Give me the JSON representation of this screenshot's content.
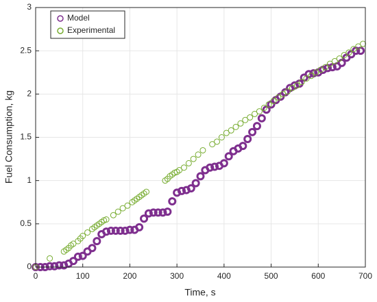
{
  "chart_data": {
    "type": "scatter",
    "xlabel": "Time, s",
    "ylabel": "Fuel Consumption, kg",
    "xlim": [
      0,
      700
    ],
    "xticks": [
      0,
      100,
      200,
      300,
      400,
      500,
      600,
      700
    ],
    "ylim": [
      0,
      3
    ],
    "yticks": [
      0,
      0.5,
      1,
      1.5,
      2,
      2.5,
      3
    ],
    "grid": true,
    "legend": "northwest",
    "series": [
      {
        "name": "Model",
        "color": "#7e2f8e",
        "filled": false,
        "x": [
          0,
          10,
          20,
          30,
          40,
          50,
          60,
          70,
          80,
          90,
          100,
          110,
          120,
          130,
          140,
          150,
          160,
          170,
          180,
          190,
          200,
          210,
          220,
          230,
          240,
          250,
          260,
          270,
          280,
          290,
          300,
          310,
          320,
          330,
          340,
          350,
          360,
          370,
          380,
          390,
          400,
          410,
          420,
          430,
          440,
          450,
          460,
          470,
          480,
          490,
          500,
          510,
          520,
          530,
          540,
          550,
          560,
          570,
          580,
          590,
          600,
          610,
          620,
          630,
          640,
          650,
          660,
          670,
          680,
          690
        ],
        "values": [
          0,
          0,
          0,
          0.01,
          0.01,
          0.02,
          0.02,
          0.04,
          0.07,
          0.12,
          0.13,
          0.18,
          0.22,
          0.3,
          0.38,
          0.41,
          0.42,
          0.42,
          0.42,
          0.42,
          0.43,
          0.43,
          0.46,
          0.56,
          0.62,
          0.63,
          0.63,
          0.63,
          0.64,
          0.76,
          0.86,
          0.88,
          0.89,
          0.91,
          0.97,
          1.05,
          1.12,
          1.15,
          1.16,
          1.17,
          1.2,
          1.28,
          1.34,
          1.37,
          1.4,
          1.48,
          1.56,
          1.63,
          1.72,
          1.82,
          1.88,
          1.93,
          1.97,
          2.02,
          2.07,
          2.1,
          2.12,
          2.19,
          2.23,
          2.24,
          2.25,
          2.28,
          2.3,
          2.31,
          2.32,
          2.36,
          2.42,
          2.46,
          2.5,
          2.5
        ]
      },
      {
        "name": "Experimental",
        "color": "#77ac30",
        "filled": false,
        "x": [
          0,
          30,
          60,
          65,
          70,
          75,
          80,
          90,
          95,
          100,
          110,
          120,
          125,
          130,
          135,
          140,
          145,
          150,
          165,
          175,
          185,
          195,
          205,
          210,
          215,
          220,
          225,
          230,
          235,
          275,
          280,
          285,
          290,
          295,
          300,
          305,
          315,
          325,
          335,
          345,
          355,
          375,
          385,
          395,
          405,
          415,
          425,
          435,
          445,
          455,
          465,
          475,
          485,
          495,
          505,
          515,
          525,
          535,
          545,
          555,
          565,
          575,
          585,
          595,
          605,
          615,
          625,
          635,
          645,
          655,
          665,
          675,
          685,
          695
        ],
        "values": [
          0,
          0.1,
          0.18,
          0.2,
          0.22,
          0.25,
          0.27,
          0.3,
          0.33,
          0.36,
          0.4,
          0.44,
          0.46,
          0.48,
          0.5,
          0.52,
          0.54,
          0.55,
          0.6,
          0.64,
          0.68,
          0.71,
          0.75,
          0.77,
          0.79,
          0.81,
          0.83,
          0.85,
          0.87,
          1.0,
          1.02,
          1.05,
          1.07,
          1.09,
          1.1,
          1.12,
          1.15,
          1.2,
          1.25,
          1.3,
          1.35,
          1.42,
          1.45,
          1.5,
          1.55,
          1.58,
          1.62,
          1.66,
          1.7,
          1.73,
          1.77,
          1.8,
          1.84,
          1.88,
          1.92,
          1.96,
          2.0,
          2.03,
          2.07,
          2.1,
          2.14,
          2.18,
          2.21,
          2.25,
          2.28,
          2.31,
          2.35,
          2.38,
          2.41,
          2.45,
          2.48,
          2.52,
          2.55,
          2.58
        ]
      }
    ]
  }
}
